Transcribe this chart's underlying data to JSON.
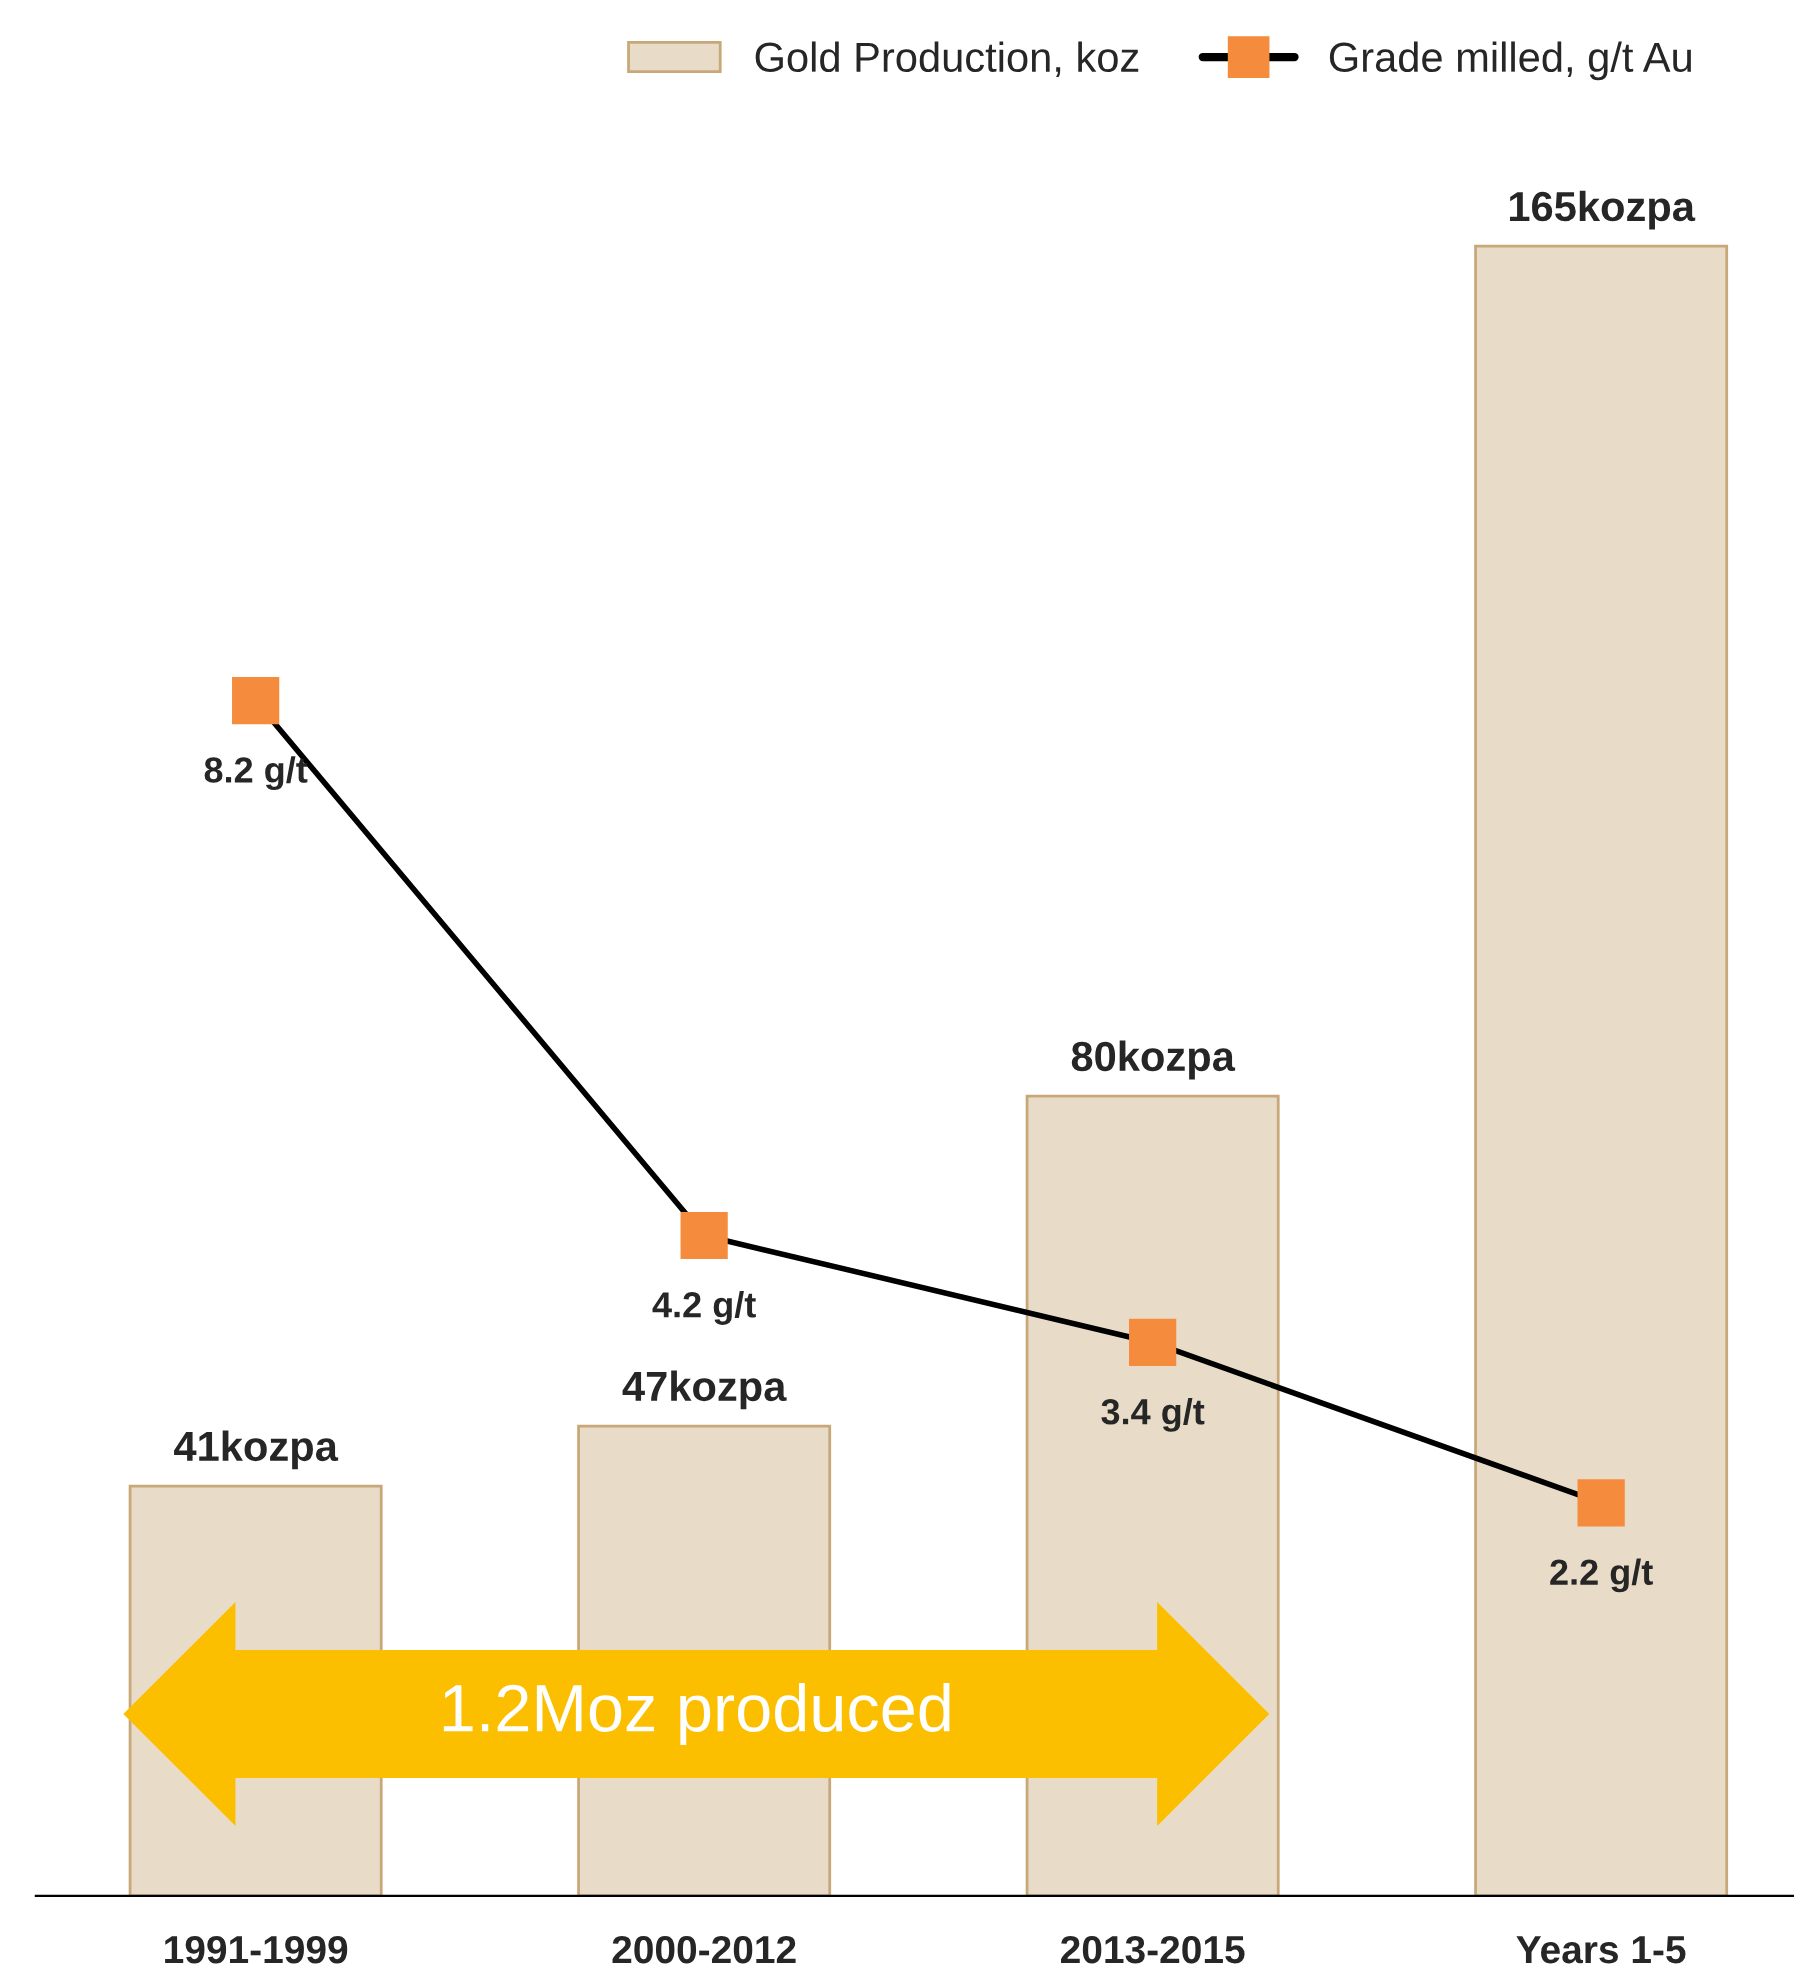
{
  "chart_data": {
    "type": "bar",
    "categories": [
      "1991-1999",
      "2000-2012",
      "2013-2015",
      "Years 1-5"
    ],
    "series": [
      {
        "name": "Gold Production, koz",
        "color": "#e8dcc8",
        "values": [
          41,
          47,
          80,
          165
        ],
        "value_labels": [
          "41kozpa",
          "47kozpa",
          "80kozpa",
          "165kozpa"
        ]
      },
      {
        "name": "Grade milled, g/t Au",
        "type": "line",
        "axis": "y2",
        "color": "#000000",
        "colors": [
          "#f58b3c",
          "#f58b3c",
          "#f58b3c",
          "#f58b3c"
        ],
        "marker": "square",
        "values": [
          8.2,
          4.2,
          3.4,
          2.2
        ],
        "value_labels": [
          "8.2 g/t",
          "4.2 g/t",
          "3.4 g/t",
          "2.2 g/t"
        ]
      }
    ],
    "tick_labels": "x",
    "grid": false,
    "legend": "top right",
    "annotations": [
      "1.2Moz produced"
    ]
  }
}
